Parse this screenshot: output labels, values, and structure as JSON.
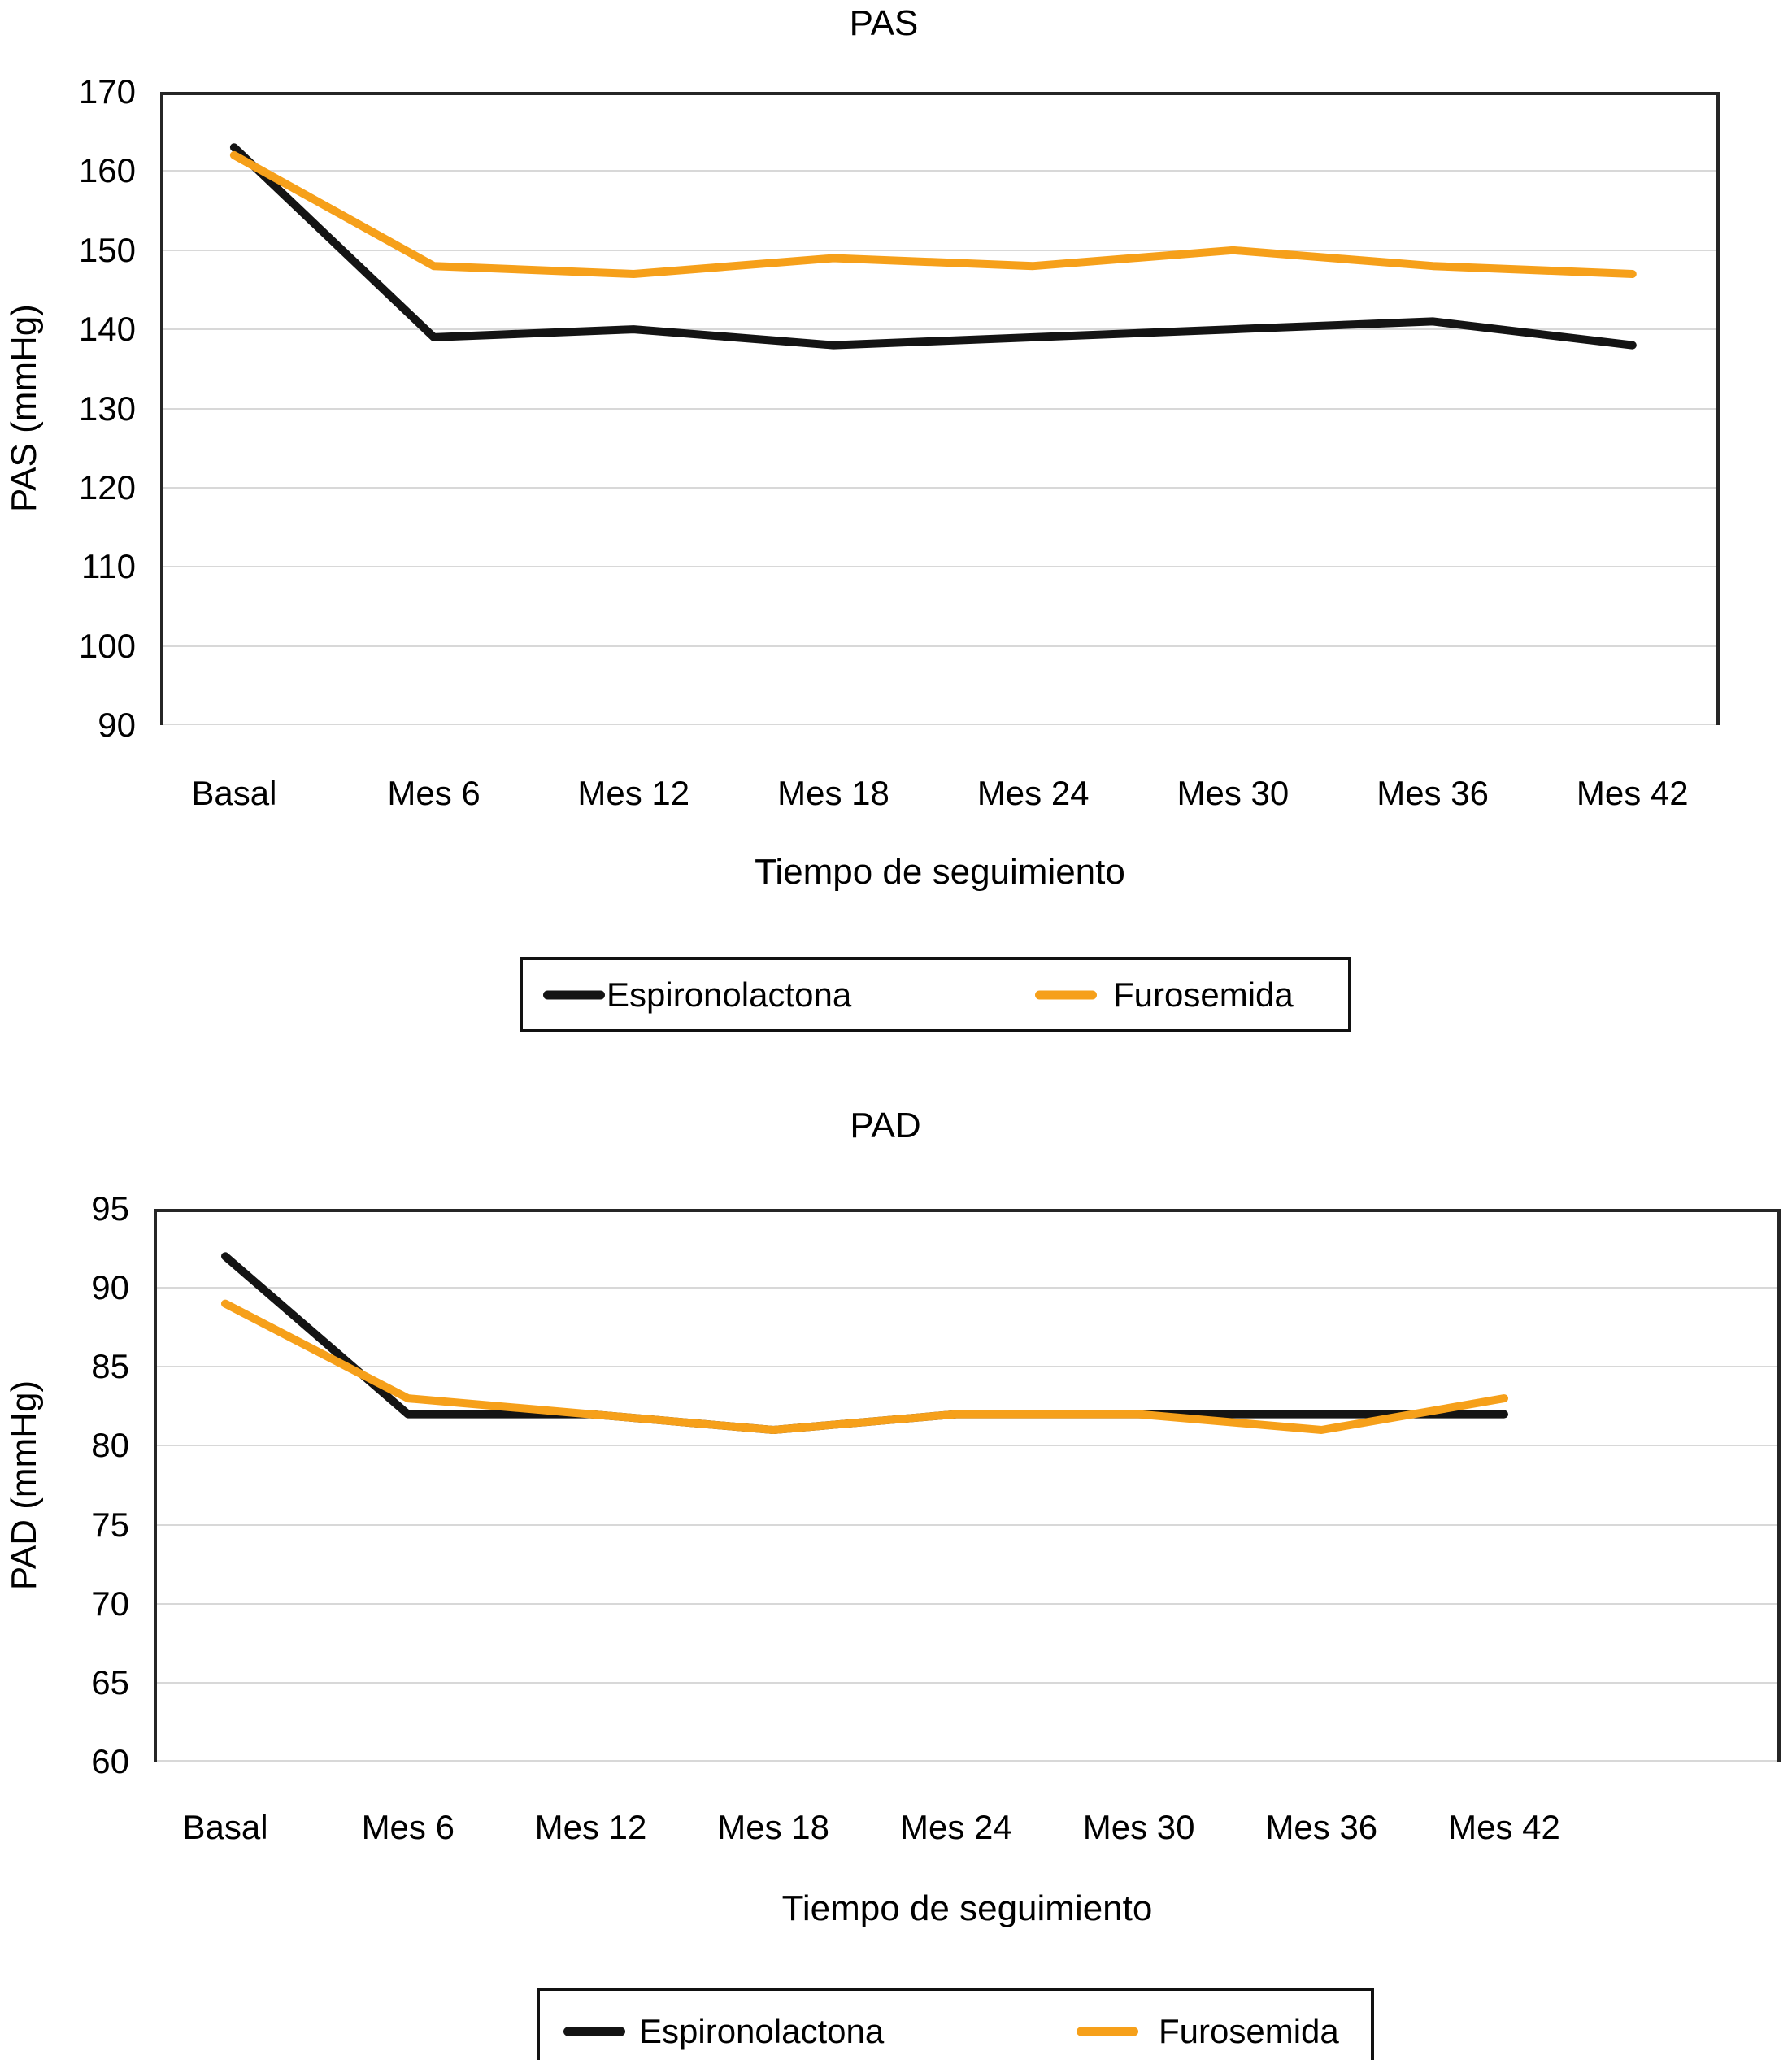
{
  "colors": {
    "background": "#FFFFFF",
    "gridline": "#D8D8D8",
    "axis_frame": "#262626",
    "series_espironolactona": "#141414",
    "series_furosemida": "#F6A01A"
  },
  "chart_data": [
    {
      "type": "line",
      "title": "PAS",
      "y_axis_title": "PAS (mmHg)",
      "x_axis_title": "Tiempo de seguimiento",
      "categories": [
        "Basal",
        "Mes 6",
        "Mes 12",
        "Mes 18",
        "Mes 24",
        "Mes 30",
        "Mes 36",
        "Mes 42"
      ],
      "y_ticks": [
        170,
        160,
        150,
        140,
        130,
        120,
        110,
        100,
        90
      ],
      "y_max": 170,
      "y_min": 90,
      "grid": "horizontal",
      "legend_position": "bottom",
      "series": [
        {
          "name": "Espironolactona",
          "color": "#141414",
          "values": [
            163,
            139,
            140,
            138,
            139,
            140,
            141,
            138
          ]
        },
        {
          "name": "Furosemida",
          "color": "#F6A01A",
          "values": [
            162,
            148,
            147,
            149,
            148,
            150,
            148,
            147
          ]
        }
      ]
    },
    {
      "type": "line",
      "title": "PAD",
      "y_axis_title": "PAD (mmHg)",
      "x_axis_title": "Tiempo de seguimiento",
      "categories": [
        "Basal",
        "Mes 6",
        "Mes 12",
        "Mes 18",
        "Mes 24",
        "Mes 30",
        "Mes 36",
        "Mes 42"
      ],
      "y_ticks": [
        95,
        90,
        85,
        80,
        75,
        70,
        65,
        60
      ],
      "y_max": 95,
      "y_min": 60,
      "grid": "horizontal",
      "legend_position": "bottom",
      "series": [
        {
          "name": "Espironolactona",
          "color": "#141414",
          "values": [
            92,
            82,
            82,
            81,
            82,
            82,
            82,
            82
          ]
        },
        {
          "name": "Furosemida",
          "color": "#F6A01A",
          "values": [
            89,
            83,
            82,
            81,
            82,
            82,
            81,
            83
          ]
        }
      ]
    }
  ]
}
